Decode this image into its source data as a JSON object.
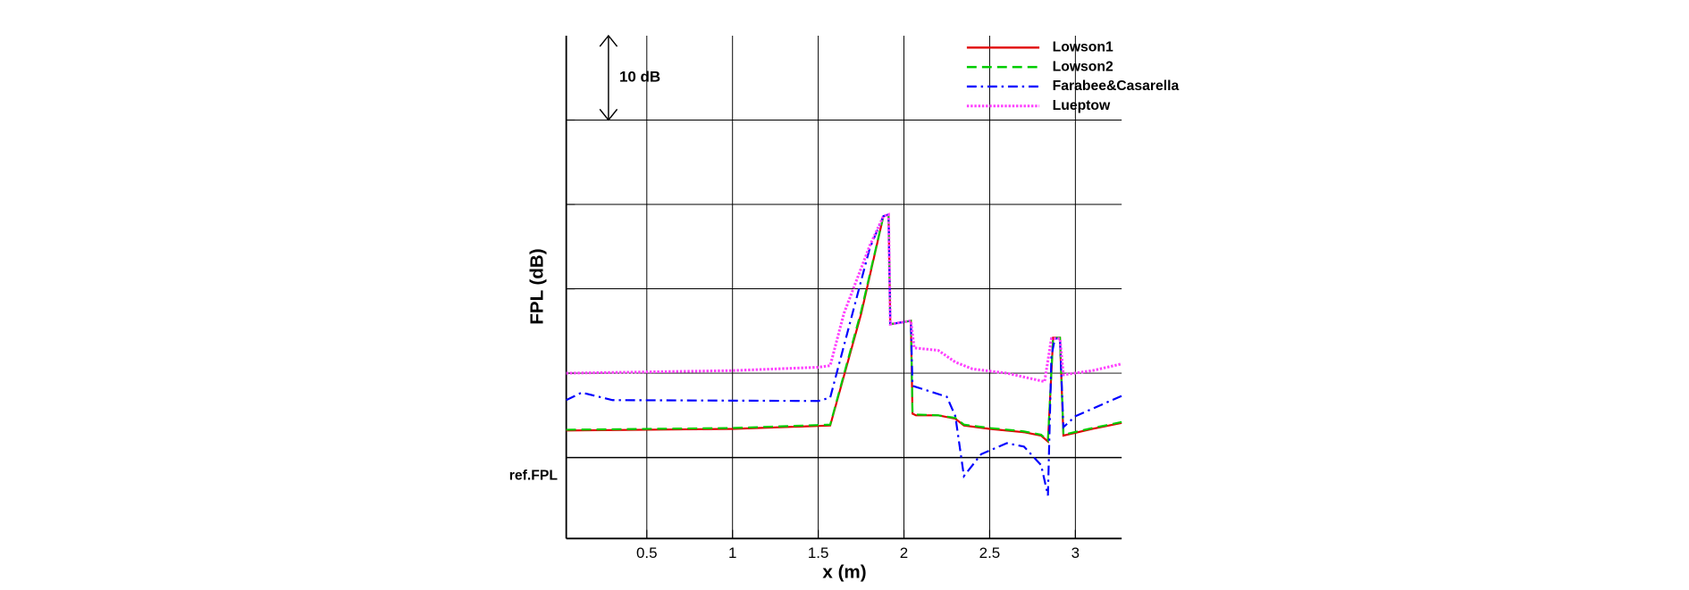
{
  "chart_data": {
    "type": "line",
    "xlabel": "x (m)",
    "ylabel": "FPL (dB)",
    "xlim": [
      0.03,
      3.27
    ],
    "xticks": [
      0.5,
      1,
      1.5,
      2,
      2.5,
      3
    ],
    "ylim": [
      -9.6,
      50
    ],
    "yticks": [
      {
        "value": 0,
        "label": "ref.FPL"
      }
    ],
    "ygrid": [
      10,
      20,
      30,
      40
    ],
    "grid": true,
    "scale_bar": {
      "label": "10 dB",
      "from": 40,
      "to": 50
    },
    "legend": "upper right",
    "series": [
      {
        "name": "Lowson1",
        "color": "#e00000",
        "dash": "solid",
        "x": [
          0.03,
          1.0,
          1.57,
          1.75,
          1.88,
          1.91,
          1.92,
          2.04,
          2.05,
          2.07,
          2.2,
          2.3,
          2.35,
          2.5,
          2.7,
          2.8,
          2.84,
          2.87,
          2.91,
          2.93,
          3.1,
          3.27
        ],
        "values": [
          3.2,
          3.4,
          3.8,
          17,
          28.6,
          28.8,
          15.8,
          16.2,
          5.2,
          5.0,
          5.0,
          4.6,
          3.8,
          3.4,
          3.0,
          2.6,
          1.9,
          14.2,
          14.2,
          2.6,
          3.4,
          4.1
        ]
      },
      {
        "name": "Lowson2",
        "color": "#00cc00",
        "dash": "dashed",
        "x": [
          0.03,
          1.0,
          1.57,
          1.75,
          1.88,
          1.91,
          1.92,
          2.04,
          2.05,
          2.07,
          2.2,
          2.3,
          2.35,
          2.5,
          2.7,
          2.8,
          2.84,
          2.87,
          2.91,
          2.93,
          3.1,
          3.27
        ],
        "values": [
          3.3,
          3.5,
          3.9,
          17.3,
          28.6,
          28.8,
          15.8,
          16.2,
          5.3,
          5.1,
          5.0,
          4.7,
          3.9,
          3.5,
          3.1,
          2.7,
          2.0,
          14.2,
          14.2,
          2.7,
          3.5,
          4.2
        ]
      },
      {
        "name": "Farabee&Casarella",
        "color": "#0000ff",
        "dash": "dashdot",
        "x": [
          0.03,
          0.12,
          0.3,
          1.5,
          1.57,
          1.8,
          1.88,
          1.91,
          1.92,
          2.04,
          2.05,
          2.25,
          2.3,
          2.35,
          2.45,
          2.6,
          2.7,
          2.8,
          2.84,
          2.86,
          2.88,
          2.91,
          2.93,
          3.0,
          3.27
        ],
        "values": [
          6.8,
          7.7,
          6.8,
          6.7,
          7.1,
          24.8,
          28.6,
          28.8,
          15.8,
          16.2,
          8.5,
          7.2,
          4.9,
          -2.2,
          0.4,
          1.7,
          1.3,
          -0.9,
          -4.5,
          12,
          14.1,
          14.1,
          3.6,
          4.9,
          7.3
        ]
      },
      {
        "name": "Lueptow",
        "color": "#ff40ff",
        "dash": "dotted",
        "x": [
          0.03,
          1.0,
          1.5,
          1.57,
          1.65,
          1.8,
          1.88,
          1.91,
          1.92,
          2.04,
          2.06,
          2.2,
          2.3,
          2.4,
          2.6,
          2.82,
          2.86,
          2.91,
          2.93,
          3.1,
          3.27
        ],
        "values": [
          10.0,
          10.3,
          10.7,
          10.9,
          17.1,
          25.1,
          28.6,
          28.8,
          15.8,
          16.2,
          13,
          12.7,
          11.3,
          10.5,
          10,
          9,
          14.1,
          14.1,
          9.8,
          10.3,
          11.1
        ]
      }
    ]
  }
}
